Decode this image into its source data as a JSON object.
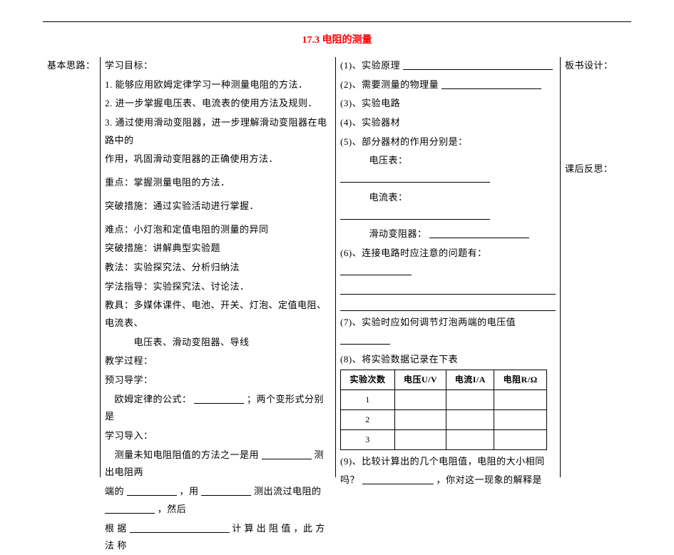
{
  "title": "17.3 电阻的测量",
  "left": {
    "heading": "基本思路："
  },
  "mid1": {
    "l1": "学习目标：",
    "l2": "1. 能够应用欧姆定律学习一种测量电阻的方法．",
    "l3": "2. 进一步掌握电压表、电流表的使用方法及规则．",
    "l4": "3. 通过使用滑动变阻器，进一步理解滑动变阻器在电路中的",
    "l5": "作用，巩固滑动变阻器的正确使用方法．",
    "l6": "重点：掌握测量电阻的方法．",
    "l7": "突破措施：通过实验活动进行掌握．",
    "l8": "难点：小灯泡和定值电阻的测量的异同",
    "l9": "突破措施：讲解典型实验题",
    "l10": "教法：实验探究法、分析归纳法",
    "l11": "学法指导：实验探究法、讨论法．",
    "l12a": "教具：多媒体课件、电池、开关、灯泡、定值电阻、电流表、",
    "l12b": "　　　电压表、滑动变阻器、导线",
    "l13": "教学过程：",
    "l14": "预习导学：",
    "l15a": "　欧姆定律的公式：",
    "l15b": "；两个变形式分别是",
    "l16": "学习导入：",
    "l17a": "　测量未知电阻阻值的方法之一是用",
    "l17b": "测出电阻两",
    "l18a": "端的",
    "l18b": "，用",
    "l18c": "测出流过电阻的",
    "l18d": "，然后",
    "l19a": "根 据",
    "l19b": "计 算 出 阻 值 ，此 方 法 称"
  },
  "mid2": {
    "r1a": "(1)、实验原理",
    "r2a": "(2)、需要测量的物理量",
    "r3": "(3)、实验电路",
    "r4": "(4)、实验器材",
    "r5": "(5)、部分器材的作用分别是：",
    "r5v": "　　　电压表：",
    "r5i": "　　　电流表：",
    "r5s": "　　　滑动变阻器：",
    "r6a": "(6)、连接电路时应注意的问题有：",
    "r7": "(7)、实验时应如何调节灯泡两端的电压值",
    "r8": "(8)、将实验数据记录在下表",
    "table": {
      "headers": [
        "实验次数",
        "电压U/V",
        "电流I/A",
        "电阻R/Ω"
      ],
      "rows": [
        "1",
        "2",
        "3"
      ]
    },
    "r9a": "(9)、比较计算出的几个电阻值，电阻的大小相同",
    "r9b": "吗？",
    "r9c": "，你对这一现象的解释是"
  },
  "right": {
    "a": "板书设计：",
    "b": "课后反思："
  },
  "style": {
    "blank_short": 70,
    "blank_med": 100,
    "blank_long": 140,
    "blank_xl": 210
  }
}
